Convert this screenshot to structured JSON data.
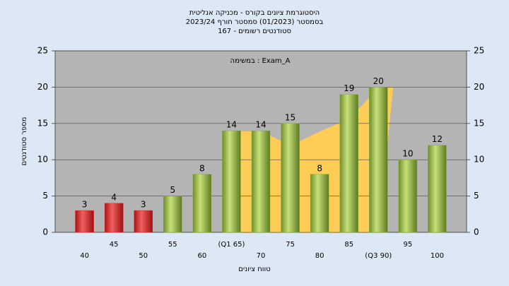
{
  "chart_data": {
    "type": "bar",
    "title": [
      "היסטוגרמת ציונים בקורס - מכניקה אנליטית",
      "בסמסטר  (01/2023)  סמסטר חורף 2023/24",
      "סטודנטים רשומים - 167"
    ],
    "annotation": "במשימה : Exam_A",
    "y_label": "מספר סטודנטים",
    "x_label": "טווח ציונים",
    "categories": [
      "40",
      "45",
      "50",
      "55",
      "60",
      "(Q1 65)",
      "70",
      "75",
      "80",
      "85",
      "(Q3 90)",
      "95",
      "100"
    ],
    "values": [
      3,
      4,
      3,
      5,
      8,
      14,
      14,
      15,
      8,
      19,
      20,
      10,
      12
    ],
    "colors": [
      "#d42a2a",
      "#d42a2a",
      "#d42a2a",
      "#8aad3c",
      "#8aad3c",
      "#8aad3c",
      "#8aad3c",
      "#8aad3c",
      "#8aad3c",
      "#8aad3c",
      "#8aad3c",
      "#8aad3c",
      "#8aad3c"
    ],
    "ylim": [
      0,
      25
    ],
    "yticks": [
      0,
      5,
      10,
      15,
      20,
      25
    ],
    "y2lim": [
      0,
      25
    ],
    "y2ticks": [
      0,
      5,
      10,
      15,
      20,
      25
    ],
    "grid": true
  }
}
